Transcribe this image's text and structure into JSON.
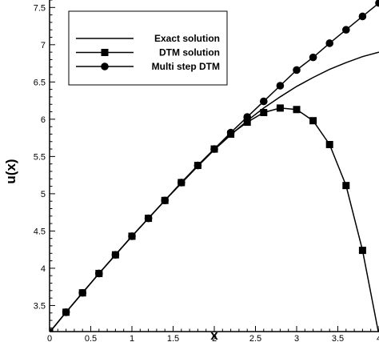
{
  "chart_data": {
    "type": "line",
    "title": "",
    "xlabel": "x",
    "ylabel": "u(x)",
    "xlim": [
      0,
      4
    ],
    "ylim": [
      3.15,
      7.6
    ],
    "grid": false,
    "legend_position": "top-left",
    "x_ticks": [
      0,
      0.5,
      1,
      1.5,
      2,
      2.5,
      3,
      3.5,
      4
    ],
    "x_tick_labels": [
      "0",
      "0.5",
      "1",
      "1.5",
      "2",
      "2.5",
      "3",
      "3.5",
      "4"
    ],
    "y_ticks": [
      3.5,
      4,
      4.5,
      5,
      5.5,
      6,
      6.5,
      7,
      7.5
    ],
    "y_tick_labels": [
      "3.5",
      "4",
      "4.5",
      "5",
      "5.5",
      "6",
      "6.5",
      "7",
      "7.5"
    ],
    "series": [
      {
        "name": "Exact solution",
        "marker": "none",
        "color": "#000000",
        "x": [
          0,
          0.2,
          0.4,
          0.6,
          0.8,
          1.0,
          1.2,
          1.4,
          1.6,
          1.8,
          2.0,
          2.2,
          2.4,
          2.6,
          2.8,
          3.0,
          3.2,
          3.4,
          3.6,
          3.8,
          4.0
        ],
        "y": [
          3.14,
          3.41,
          3.67,
          3.93,
          4.18,
          4.43,
          4.67,
          4.91,
          5.14,
          5.37,
          5.59,
          5.79,
          5.98,
          6.15,
          6.3,
          6.44,
          6.56,
          6.67,
          6.76,
          6.84,
          6.9
        ]
      },
      {
        "name": "DTM solution",
        "marker": "square",
        "color": "#000000",
        "x": [
          0,
          0.2,
          0.4,
          0.6,
          0.8,
          1.0,
          1.2,
          1.4,
          1.6,
          1.8,
          2.0,
          2.2,
          2.4,
          2.6,
          2.8,
          3.0,
          3.2,
          3.4,
          3.6,
          3.8,
          4.0
        ],
        "y": [
          3.14,
          3.41,
          3.67,
          3.93,
          4.18,
          4.43,
          4.67,
          4.91,
          5.15,
          5.38,
          5.6,
          5.8,
          5.96,
          6.09,
          6.15,
          6.13,
          5.98,
          5.66,
          5.11,
          4.24,
          3.1
        ]
      },
      {
        "name": "Multi step DTM",
        "marker": "circle",
        "color": "#000000",
        "x": [
          0,
          0.2,
          0.4,
          0.6,
          0.8,
          1.0,
          1.2,
          1.4,
          1.6,
          1.8,
          2.0,
          2.2,
          2.4,
          2.6,
          2.8,
          3.0,
          3.2,
          3.4,
          3.6,
          3.8,
          4.0
        ],
        "y": [
          3.14,
          3.41,
          3.67,
          3.93,
          4.18,
          4.43,
          4.67,
          4.91,
          5.15,
          5.38,
          5.6,
          5.82,
          6.03,
          6.24,
          6.45,
          6.66,
          6.83,
          7.02,
          7.2,
          7.38,
          7.56
        ]
      }
    ]
  }
}
